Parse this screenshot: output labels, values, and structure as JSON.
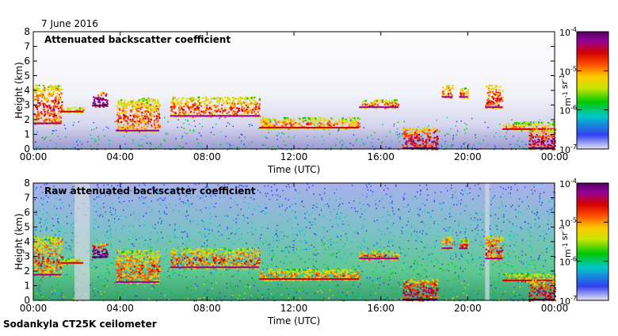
{
  "header": {
    "date": "7 June 2016"
  },
  "footer": {
    "instrument": "Sodankyla CT25K ceilometer"
  },
  "colors": {
    "background_top": "#ebebf5",
    "background_bottom": "#9a9ad0",
    "colormap": [
      "#e6e6f0",
      "#3240f0",
      "#00c8c8",
      "#00c800",
      "#c8e600",
      "#ffc800",
      "#ff5000",
      "#d20000",
      "#960096",
      "#500060"
    ]
  },
  "chart_data": [
    {
      "type": "heatmap",
      "title": "Attenuated backscatter coefficient",
      "xlabel": "Time (UTC)",
      "ylabel": "Height (km)",
      "xlim": [
        0,
        24
      ],
      "ylim": [
        0,
        8
      ],
      "xticks": [
        0,
        4,
        8,
        12,
        16,
        20,
        24
      ],
      "xtick_labels": [
        "00:00",
        "04:00",
        "08:00",
        "12:00",
        "16:00",
        "20:00",
        "00:00"
      ],
      "yticks": [
        0,
        1,
        2,
        3,
        4,
        5,
        6,
        7,
        8
      ],
      "ytick_labels": [
        "0",
        "1",
        "2",
        "3",
        "4",
        "5",
        "6",
        "7",
        "8"
      ],
      "colorbar": {
        "scale": "log",
        "range": [
          1e-07,
          0.0001
        ],
        "tick_labels": [
          "10<sup>-7</sup>",
          "10<sup>-6</sup>",
          "10<sup>-5</sup>",
          "10<sup>-4</sup>"
        ],
        "tick_text": [
          "10-7",
          "10-6",
          "10-5",
          "10-4"
        ],
        "label": "m-1 sr-1"
      },
      "noise_level": "low",
      "cloud_layers": [
        {
          "t0": 0.0,
          "t1": 1.3,
          "h0": 1.7,
          "h1": 4.4,
          "intensity": 0.75
        },
        {
          "t0": 1.3,
          "t1": 2.3,
          "h0": 2.5,
          "h1": 2.9,
          "intensity": 0.6
        },
        {
          "t0": 2.7,
          "t1": 3.4,
          "h0": 2.9,
          "h1": 3.9,
          "intensity": 1.0
        },
        {
          "t0": 3.8,
          "t1": 5.8,
          "h0": 1.2,
          "h1": 3.5,
          "intensity": 0.7
        },
        {
          "t0": 6.3,
          "t1": 10.4,
          "h0": 2.2,
          "h1": 3.6,
          "intensity": 0.7
        },
        {
          "t0": 10.4,
          "t1": 15.0,
          "h0": 1.4,
          "h1": 2.2,
          "intensity": 0.65
        },
        {
          "t0": 15.0,
          "t1": 16.8,
          "h0": 2.8,
          "h1": 3.4,
          "intensity": 0.7
        },
        {
          "t0": 17.0,
          "t1": 18.6,
          "h0": 0.0,
          "h1": 1.5,
          "intensity": 0.85
        },
        {
          "t0": 18.8,
          "t1": 19.3,
          "h0": 3.5,
          "h1": 4.4,
          "intensity": 0.7
        },
        {
          "t0": 19.6,
          "t1": 20.0,
          "h0": 3.5,
          "h1": 4.2,
          "intensity": 0.7
        },
        {
          "t0": 20.8,
          "t1": 21.6,
          "h0": 2.8,
          "h1": 4.4,
          "intensity": 0.75
        },
        {
          "t0": 21.6,
          "t1": 24.0,
          "h0": 1.3,
          "h1": 1.9,
          "intensity": 0.6
        },
        {
          "t0": 22.8,
          "t1": 24.0,
          "h0": 0.0,
          "h1": 1.4,
          "intensity": 0.85
        }
      ]
    },
    {
      "type": "heatmap",
      "title": "Raw attenuated backscatter coefficient",
      "xlabel": "Time (UTC)",
      "ylabel": "Height (km)",
      "xlim": [
        0,
        24
      ],
      "ylim": [
        0,
        8
      ],
      "xticks": [
        0,
        4,
        8,
        12,
        16,
        20,
        24
      ],
      "xtick_labels": [
        "00:00",
        "04:00",
        "08:00",
        "12:00",
        "16:00",
        "20:00",
        "00:00"
      ],
      "yticks": [
        0,
        1,
        2,
        3,
        4,
        5,
        6,
        7,
        8
      ],
      "ytick_labels": [
        "0",
        "1",
        "2",
        "3",
        "4",
        "5",
        "6",
        "7",
        "8"
      ],
      "colorbar": {
        "scale": "log",
        "range": [
          1e-07,
          0.0001
        ],
        "tick_text": [
          "10-7",
          "10-6",
          "10-5",
          "10-4"
        ],
        "label": "m-1 sr-1"
      },
      "noise_level": "high",
      "cloud_layers": [
        {
          "t0": 0.0,
          "t1": 1.3,
          "h0": 1.7,
          "h1": 4.4,
          "intensity": 0.7
        },
        {
          "t0": 1.3,
          "t1": 2.3,
          "h0": 2.5,
          "h1": 2.9,
          "intensity": 0.6
        },
        {
          "t0": 2.7,
          "t1": 3.4,
          "h0": 2.9,
          "h1": 3.9,
          "intensity": 1.0
        },
        {
          "t0": 3.8,
          "t1": 5.8,
          "h0": 1.2,
          "h1": 3.5,
          "intensity": 0.7
        },
        {
          "t0": 6.3,
          "t1": 10.4,
          "h0": 2.2,
          "h1": 3.6,
          "intensity": 0.7
        },
        {
          "t0": 10.4,
          "t1": 15.0,
          "h0": 1.4,
          "h1": 2.2,
          "intensity": 0.65
        },
        {
          "t0": 15.0,
          "t1": 16.8,
          "h0": 2.8,
          "h1": 3.4,
          "intensity": 0.7
        },
        {
          "t0": 17.0,
          "t1": 18.6,
          "h0": 0.0,
          "h1": 1.5,
          "intensity": 0.85
        },
        {
          "t0": 18.8,
          "t1": 19.3,
          "h0": 3.5,
          "h1": 4.4,
          "intensity": 0.7
        },
        {
          "t0": 19.6,
          "t1": 20.0,
          "h0": 3.5,
          "h1": 4.2,
          "intensity": 0.7
        },
        {
          "t0": 20.8,
          "t1": 21.6,
          "h0": 2.8,
          "h1": 4.4,
          "intensity": 0.75
        },
        {
          "t0": 21.6,
          "t1": 24.0,
          "h0": 1.3,
          "h1": 1.9,
          "intensity": 0.6
        },
        {
          "t0": 22.8,
          "t1": 24.0,
          "h0": 0.0,
          "h1": 1.4,
          "intensity": 0.85
        }
      ]
    }
  ]
}
